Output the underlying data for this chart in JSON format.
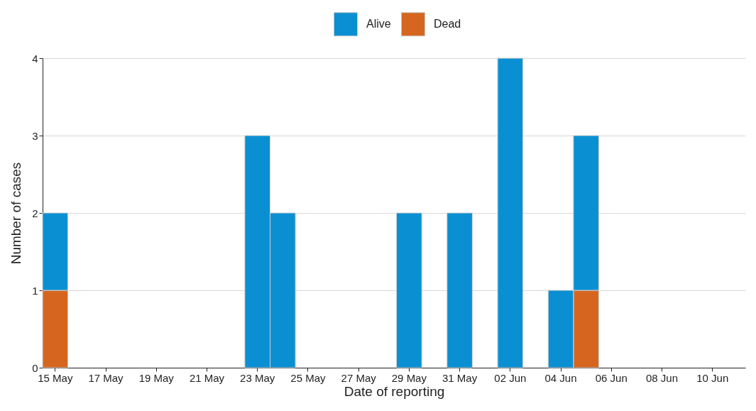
{
  "chart_data": {
    "type": "bar",
    "xlabel": "Date of reporting",
    "ylabel": "Number of cases",
    "categories": [
      "15 May",
      null,
      "17 May",
      null,
      "19 May",
      null,
      "21 May",
      null,
      "23 May",
      null,
      "25 May",
      null,
      "27 May",
      null,
      "29 May",
      null,
      "31 May",
      null,
      "02 Jun",
      null,
      "04 Jun",
      null,
      "06 Jun",
      null,
      "08 Jun",
      null,
      "10 Jun"
    ],
    "series": [
      {
        "name": "Dead",
        "color": "#d6661f",
        "values": [
          1,
          0,
          0,
          0,
          0,
          0,
          0,
          0,
          0,
          0,
          0,
          0,
          0,
          0,
          0,
          0,
          0,
          0,
          0,
          0,
          0,
          1,
          0,
          0,
          0,
          0,
          0
        ]
      },
      {
        "name": "Alive",
        "color": "#0b8fd3",
        "values": [
          1,
          0,
          0,
          0,
          0,
          0,
          0,
          0,
          3,
          2,
          0,
          0,
          0,
          0,
          2,
          0,
          2,
          0,
          4,
          0,
          1,
          2,
          0,
          0,
          0,
          0,
          0
        ]
      }
    ],
    "stacked": true,
    "ylim": [
      0,
      4
    ],
    "yticks": [
      0,
      1,
      2,
      3,
      4
    ],
    "grid": "y",
    "legend": "top"
  }
}
